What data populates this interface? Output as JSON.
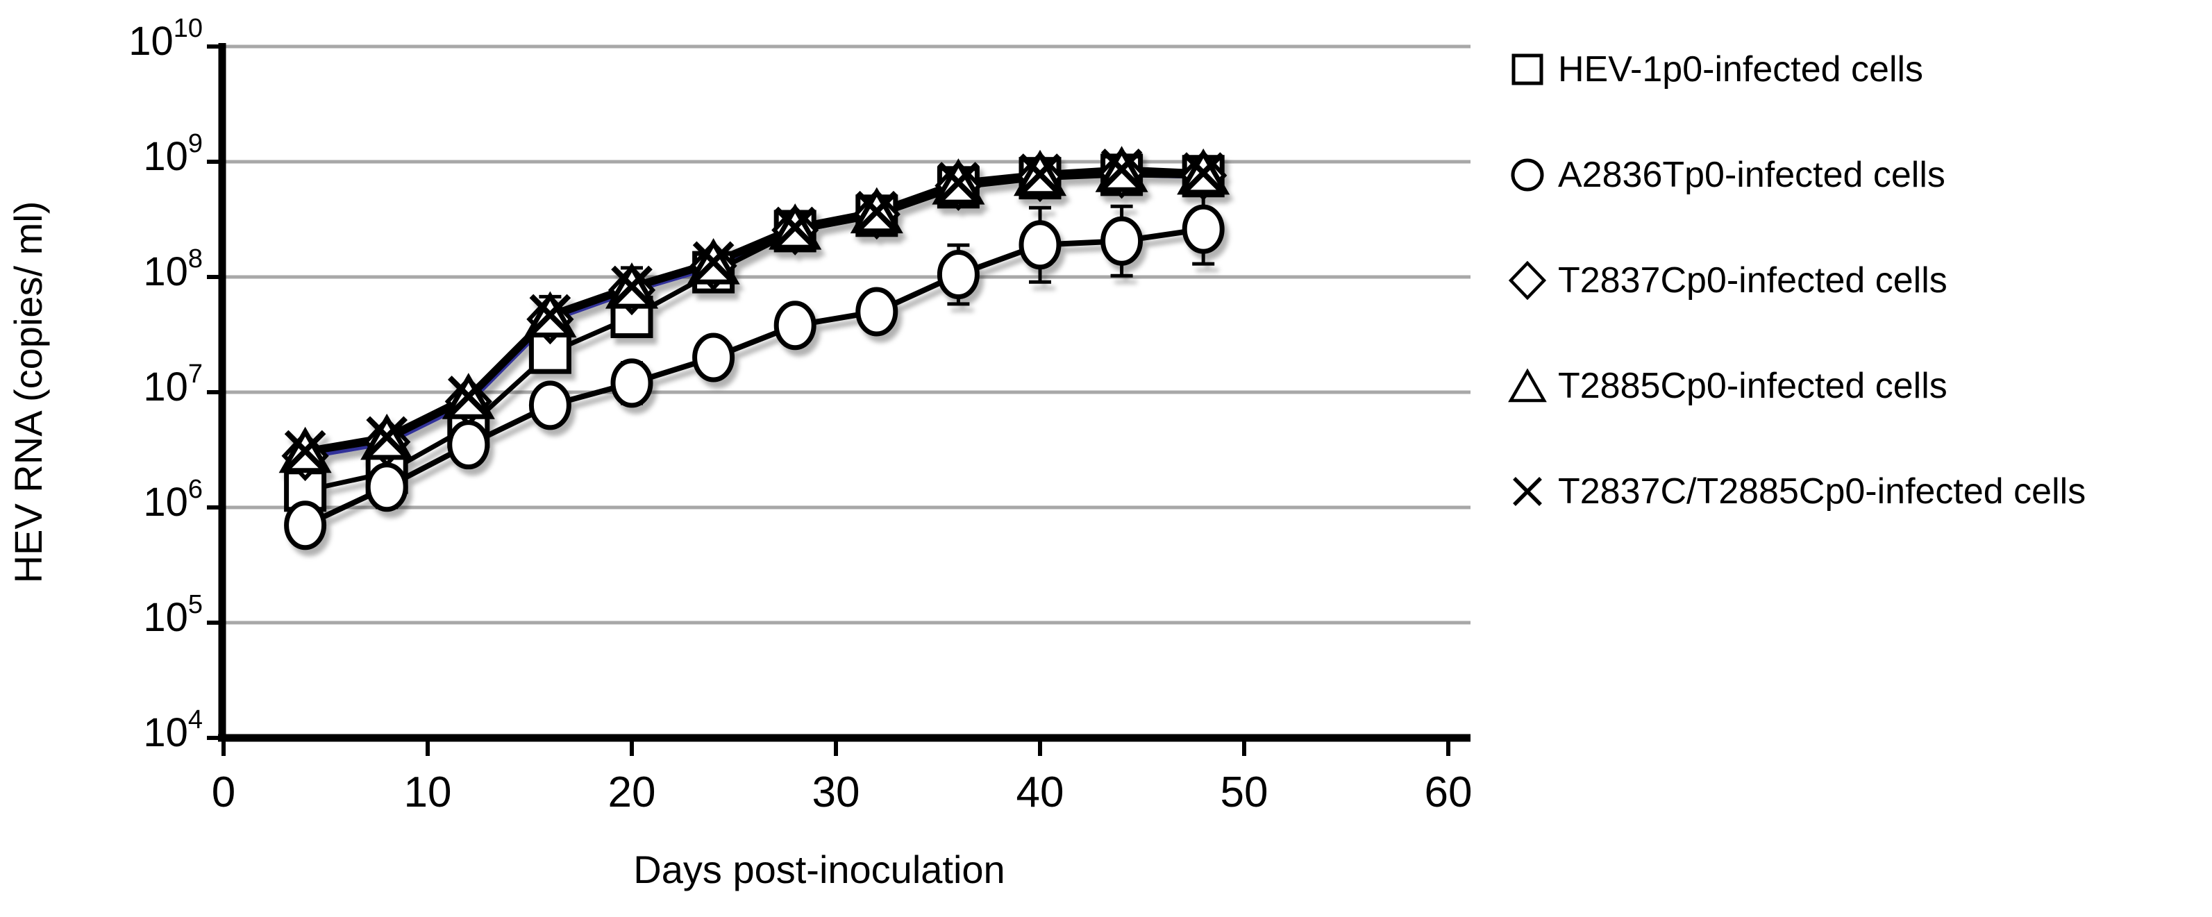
{
  "figure": {
    "background": "#ffffff"
  },
  "chart_data": {
    "type": "line",
    "title": "",
    "xlabel": "Days post-inoculation",
    "ylabel": "HEV RNA (copies/ ml)",
    "x_axis": {
      "min": 0,
      "max": 60,
      "ticks": [
        0,
        10,
        20,
        30,
        40,
        50,
        60
      ]
    },
    "y_axis": {
      "scale": "log",
      "min": 10000,
      "max": 10000000000,
      "tick_exponents": [
        4,
        5,
        6,
        7,
        8,
        9,
        10
      ],
      "tick_label_base": "10"
    },
    "grid": {
      "show": true,
      "color": "#a8a8a8",
      "gridline_exponents": [
        5,
        6,
        7,
        8,
        9,
        10
      ]
    },
    "axis_color": "#000000",
    "legend_position": "right",
    "x": [
      4,
      8,
      12,
      16,
      20,
      24,
      28,
      32,
      36,
      40,
      44,
      48
    ],
    "series": [
      {
        "name": "HEV-1p0-infected cells",
        "marker": "square",
        "color": "#000000",
        "values": [
          1400000,
          2000000,
          5000000,
          22000000,
          45000000,
          110000000,
          250000000,
          340000000,
          600000000,
          720000000,
          770000000,
          750000000
        ],
        "err_factors": [
          null,
          null,
          null,
          null,
          null,
          null,
          null,
          null,
          null,
          null,
          null,
          null
        ]
      },
      {
        "name": "A2836Tp0-infected cells",
        "marker": "circle",
        "color": "#000000",
        "values": [
          700000,
          1500000,
          3500000,
          7700000,
          12000000,
          20000000,
          38000000,
          50000000,
          105000000,
          190000000,
          205000000,
          260000000
        ],
        "err_factors": [
          1.35,
          1.5,
          null,
          null,
          1.5,
          1.45,
          null,
          null,
          1.8,
          2.1,
          2.0,
          2.0
        ]
      },
      {
        "name": "T2837Cp0-infected cells",
        "marker": "diamond",
        "color": "#333399",
        "values": [
          2800000,
          3700000,
          8300000,
          43000000,
          77000000,
          125000000,
          255000000,
          350000000,
          620000000,
          740000000,
          790000000,
          760000000
        ],
        "err_factors": [
          null,
          null,
          null,
          null,
          null,
          null,
          null,
          null,
          null,
          null,
          null,
          null
        ]
      },
      {
        "name": "T2885Cp0-infected cells",
        "marker": "triangle",
        "color": "#000000",
        "values": [
          3000000,
          3900000,
          8800000,
          45000000,
          80000000,
          130000000,
          260000000,
          360000000,
          640000000,
          760000000,
          820000000,
          780000000
        ],
        "err_factors": [
          null,
          null,
          null,
          1.5,
          1.5,
          null,
          null,
          null,
          1.3,
          null,
          null,
          null
        ]
      },
      {
        "name": "T2837C/T2885Cp0-infected cells",
        "marker": "x",
        "color": "#000000",
        "values": [
          3100000,
          4100000,
          9200000,
          47000000,
          83000000,
          135000000,
          270000000,
          370000000,
          660000000,
          780000000,
          860000000,
          800000000
        ],
        "err_factors": [
          null,
          null,
          null,
          null,
          null,
          null,
          null,
          null,
          null,
          null,
          null,
          null
        ]
      }
    ]
  }
}
